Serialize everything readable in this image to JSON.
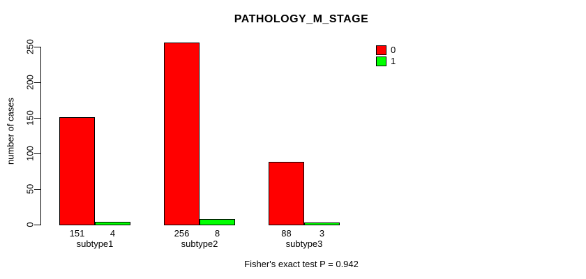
{
  "chart_data": {
    "type": "bar",
    "title": "PATHOLOGY_M_STAGE",
    "categories": [
      "subtype1",
      "subtype2",
      "subtype3"
    ],
    "series": [
      {
        "name": "0",
        "color": "#FF0000",
        "values": [
          151,
          256,
          88
        ]
      },
      {
        "name": "1",
        "color": "#00FF00",
        "values": [
          4,
          8,
          3
        ]
      }
    ],
    "bar_value_labels": [
      [
        "151",
        "4"
      ],
      [
        "256",
        "8"
      ],
      [
        "88",
        "3"
      ]
    ],
    "ylabel": "number of cases",
    "xlabel": "",
    "ylim": [
      0,
      250
    ],
    "yticks": [
      0,
      50,
      100,
      150,
      200,
      250
    ],
    "grid": false,
    "legend_position": "top-right",
    "annotation": "Fisher's exact test P = 0.942"
  }
}
